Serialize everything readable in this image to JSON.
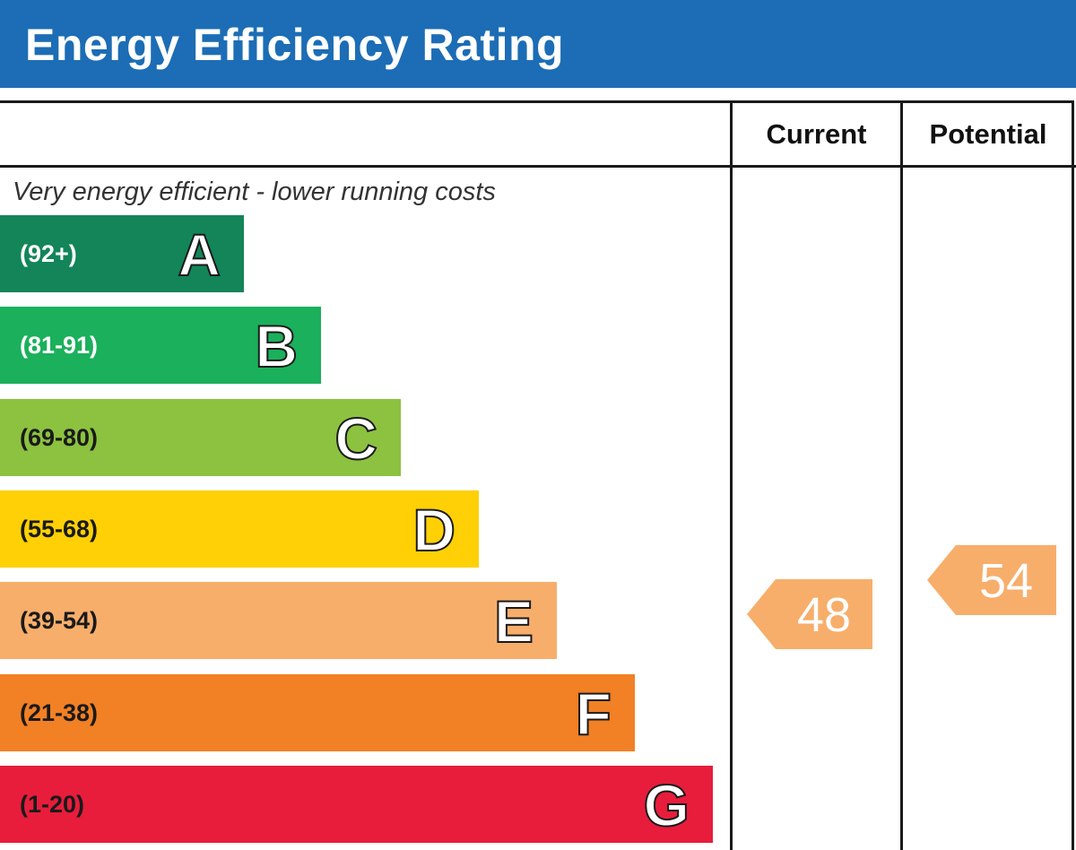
{
  "header": {
    "title": "Energy Efficiency Rating"
  },
  "columns": {
    "current": "Current",
    "potential": "Potential"
  },
  "note_top": "Very energy efficient - lower running costs",
  "colors": {
    "title_bar": "#1c6db5",
    "A": "#138558",
    "B": "#1bb05b",
    "C": "#8cc23f",
    "D": "#fed005",
    "E": "#f7ae6b",
    "F": "#f28025",
    "G": "#e71d3b",
    "rating_arrow": "#f7ae6b"
  },
  "chart_data": {
    "type": "table",
    "bands": [
      {
        "letter": "A",
        "range": "(92+)"
      },
      {
        "letter": "B",
        "range": "(81-91)"
      },
      {
        "letter": "C",
        "range": "(69-80)"
      },
      {
        "letter": "D",
        "range": "(55-68)"
      },
      {
        "letter": "E",
        "range": "(39-54)"
      },
      {
        "letter": "F",
        "range": "(21-38)"
      },
      {
        "letter": "G",
        "range": "(1-20)"
      }
    ],
    "current": {
      "value": "48",
      "band": "E"
    },
    "potential": {
      "value": "54",
      "band": "E"
    }
  }
}
